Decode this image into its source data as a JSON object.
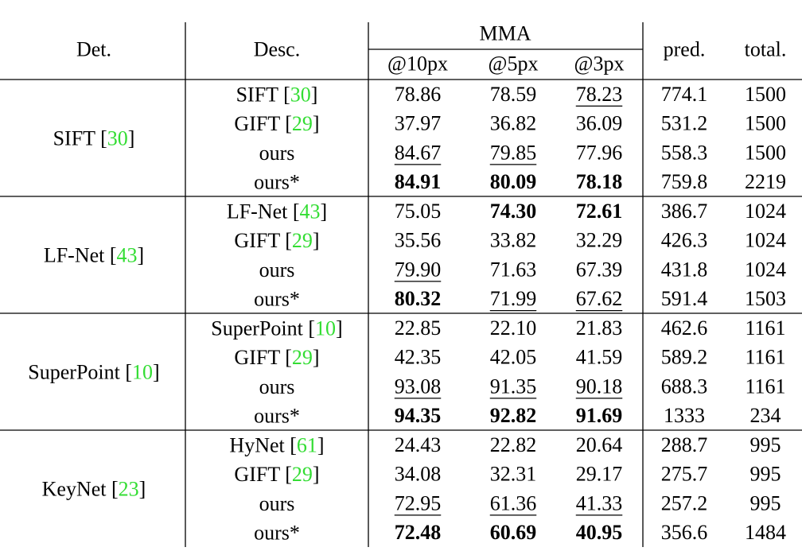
{
  "header": {
    "det": "Det.",
    "desc": "Desc.",
    "group": "MMA",
    "sub": [
      "@10px",
      "@5px",
      "@3px"
    ],
    "pred": "pred.",
    "total": "total."
  },
  "groups": [
    {
      "detector": [
        "SIFT [",
        "30",
        "]"
      ],
      "rows": [
        {
          "descriptor": [
            "SIFT [",
            "30",
            "]"
          ],
          "values": [
            "78.86",
            "78.59",
            "78.23",
            "774.1",
            "1500"
          ],
          "bold": [],
          "underline": [
            2
          ]
        },
        {
          "descriptor": [
            "GIFT [",
            "29",
            "]"
          ],
          "values": [
            "37.97",
            "36.82",
            "36.09",
            "531.2",
            "1500"
          ],
          "bold": [],
          "underline": []
        },
        {
          "descriptor": [
            "ours"
          ],
          "values": [
            "84.67",
            "79.85",
            "77.96",
            "558.3",
            "1500"
          ],
          "bold": [],
          "underline": [
            0,
            1
          ]
        },
        {
          "descriptor": [
            "ours*"
          ],
          "values": [
            "84.91",
            "80.09",
            "78.18",
            "759.8",
            "2219"
          ],
          "bold": [
            0,
            1,
            2
          ],
          "underline": []
        }
      ]
    },
    {
      "detector": [
        "LF-Net [",
        "43",
        "]"
      ],
      "rows": [
        {
          "descriptor": [
            "LF-Net [",
            "43",
            "]"
          ],
          "values": [
            "75.05",
            "74.30",
            "72.61",
            "386.7",
            "1024"
          ],
          "bold": [
            1,
            2
          ],
          "underline": []
        },
        {
          "descriptor": [
            "GIFT [",
            "29",
            "]"
          ],
          "values": [
            "35.56",
            "33.82",
            "32.29",
            "426.3",
            "1024"
          ],
          "bold": [],
          "underline": []
        },
        {
          "descriptor": [
            "ours"
          ],
          "values": [
            "79.90",
            "71.63",
            "67.39",
            "431.8",
            "1024"
          ],
          "bold": [],
          "underline": [
            0
          ]
        },
        {
          "descriptor": [
            "ours*"
          ],
          "values": [
            "80.32",
            "71.99",
            "67.62",
            "591.4",
            "1503"
          ],
          "bold": [
            0
          ],
          "underline": [
            1,
            2
          ]
        }
      ]
    },
    {
      "detector": [
        "SuperPoint [",
        "10",
        "]"
      ],
      "rows": [
        {
          "descriptor": [
            "SuperPoint [",
            "10",
            "]"
          ],
          "values": [
            "22.85",
            "22.10",
            "21.83",
            "462.6",
            "1161"
          ],
          "bold": [],
          "underline": []
        },
        {
          "descriptor": [
            "GIFT [",
            "29",
            "]"
          ],
          "values": [
            "42.35",
            "42.05",
            "41.59",
            "589.2",
            "1161"
          ],
          "bold": [],
          "underline": []
        },
        {
          "descriptor": [
            "ours"
          ],
          "values": [
            "93.08",
            "91.35",
            "90.18",
            "688.3",
            "1161"
          ],
          "bold": [],
          "underline": [
            0,
            1,
            2
          ]
        },
        {
          "descriptor": [
            "ours*"
          ],
          "values": [
            "94.35",
            "92.82",
            "91.69",
            "1333",
            "234"
          ],
          "bold": [
            0,
            1,
            2
          ],
          "underline": []
        }
      ]
    },
    {
      "detector": [
        "KeyNet [",
        "23",
        "]"
      ],
      "rows": [
        {
          "descriptor": [
            "HyNet [",
            "61",
            "]"
          ],
          "values": [
            "24.43",
            "22.82",
            "20.64",
            "288.7",
            "995"
          ],
          "bold": [],
          "underline": []
        },
        {
          "descriptor": [
            "GIFT [",
            "29",
            "]"
          ],
          "values": [
            "34.08",
            "32.31",
            "29.17",
            "275.7",
            "995"
          ],
          "bold": [],
          "underline": []
        },
        {
          "descriptor": [
            "ours"
          ],
          "values": [
            "72.95",
            "61.36",
            "41.33",
            "257.2",
            "995"
          ],
          "bold": [],
          "underline": [
            0,
            1,
            2
          ]
        },
        {
          "descriptor": [
            "ours*"
          ],
          "values": [
            "72.48",
            "60.69",
            "40.95",
            "356.6",
            "1484"
          ],
          "bold": [
            0,
            1,
            2
          ],
          "underline": []
        }
      ]
    }
  ]
}
